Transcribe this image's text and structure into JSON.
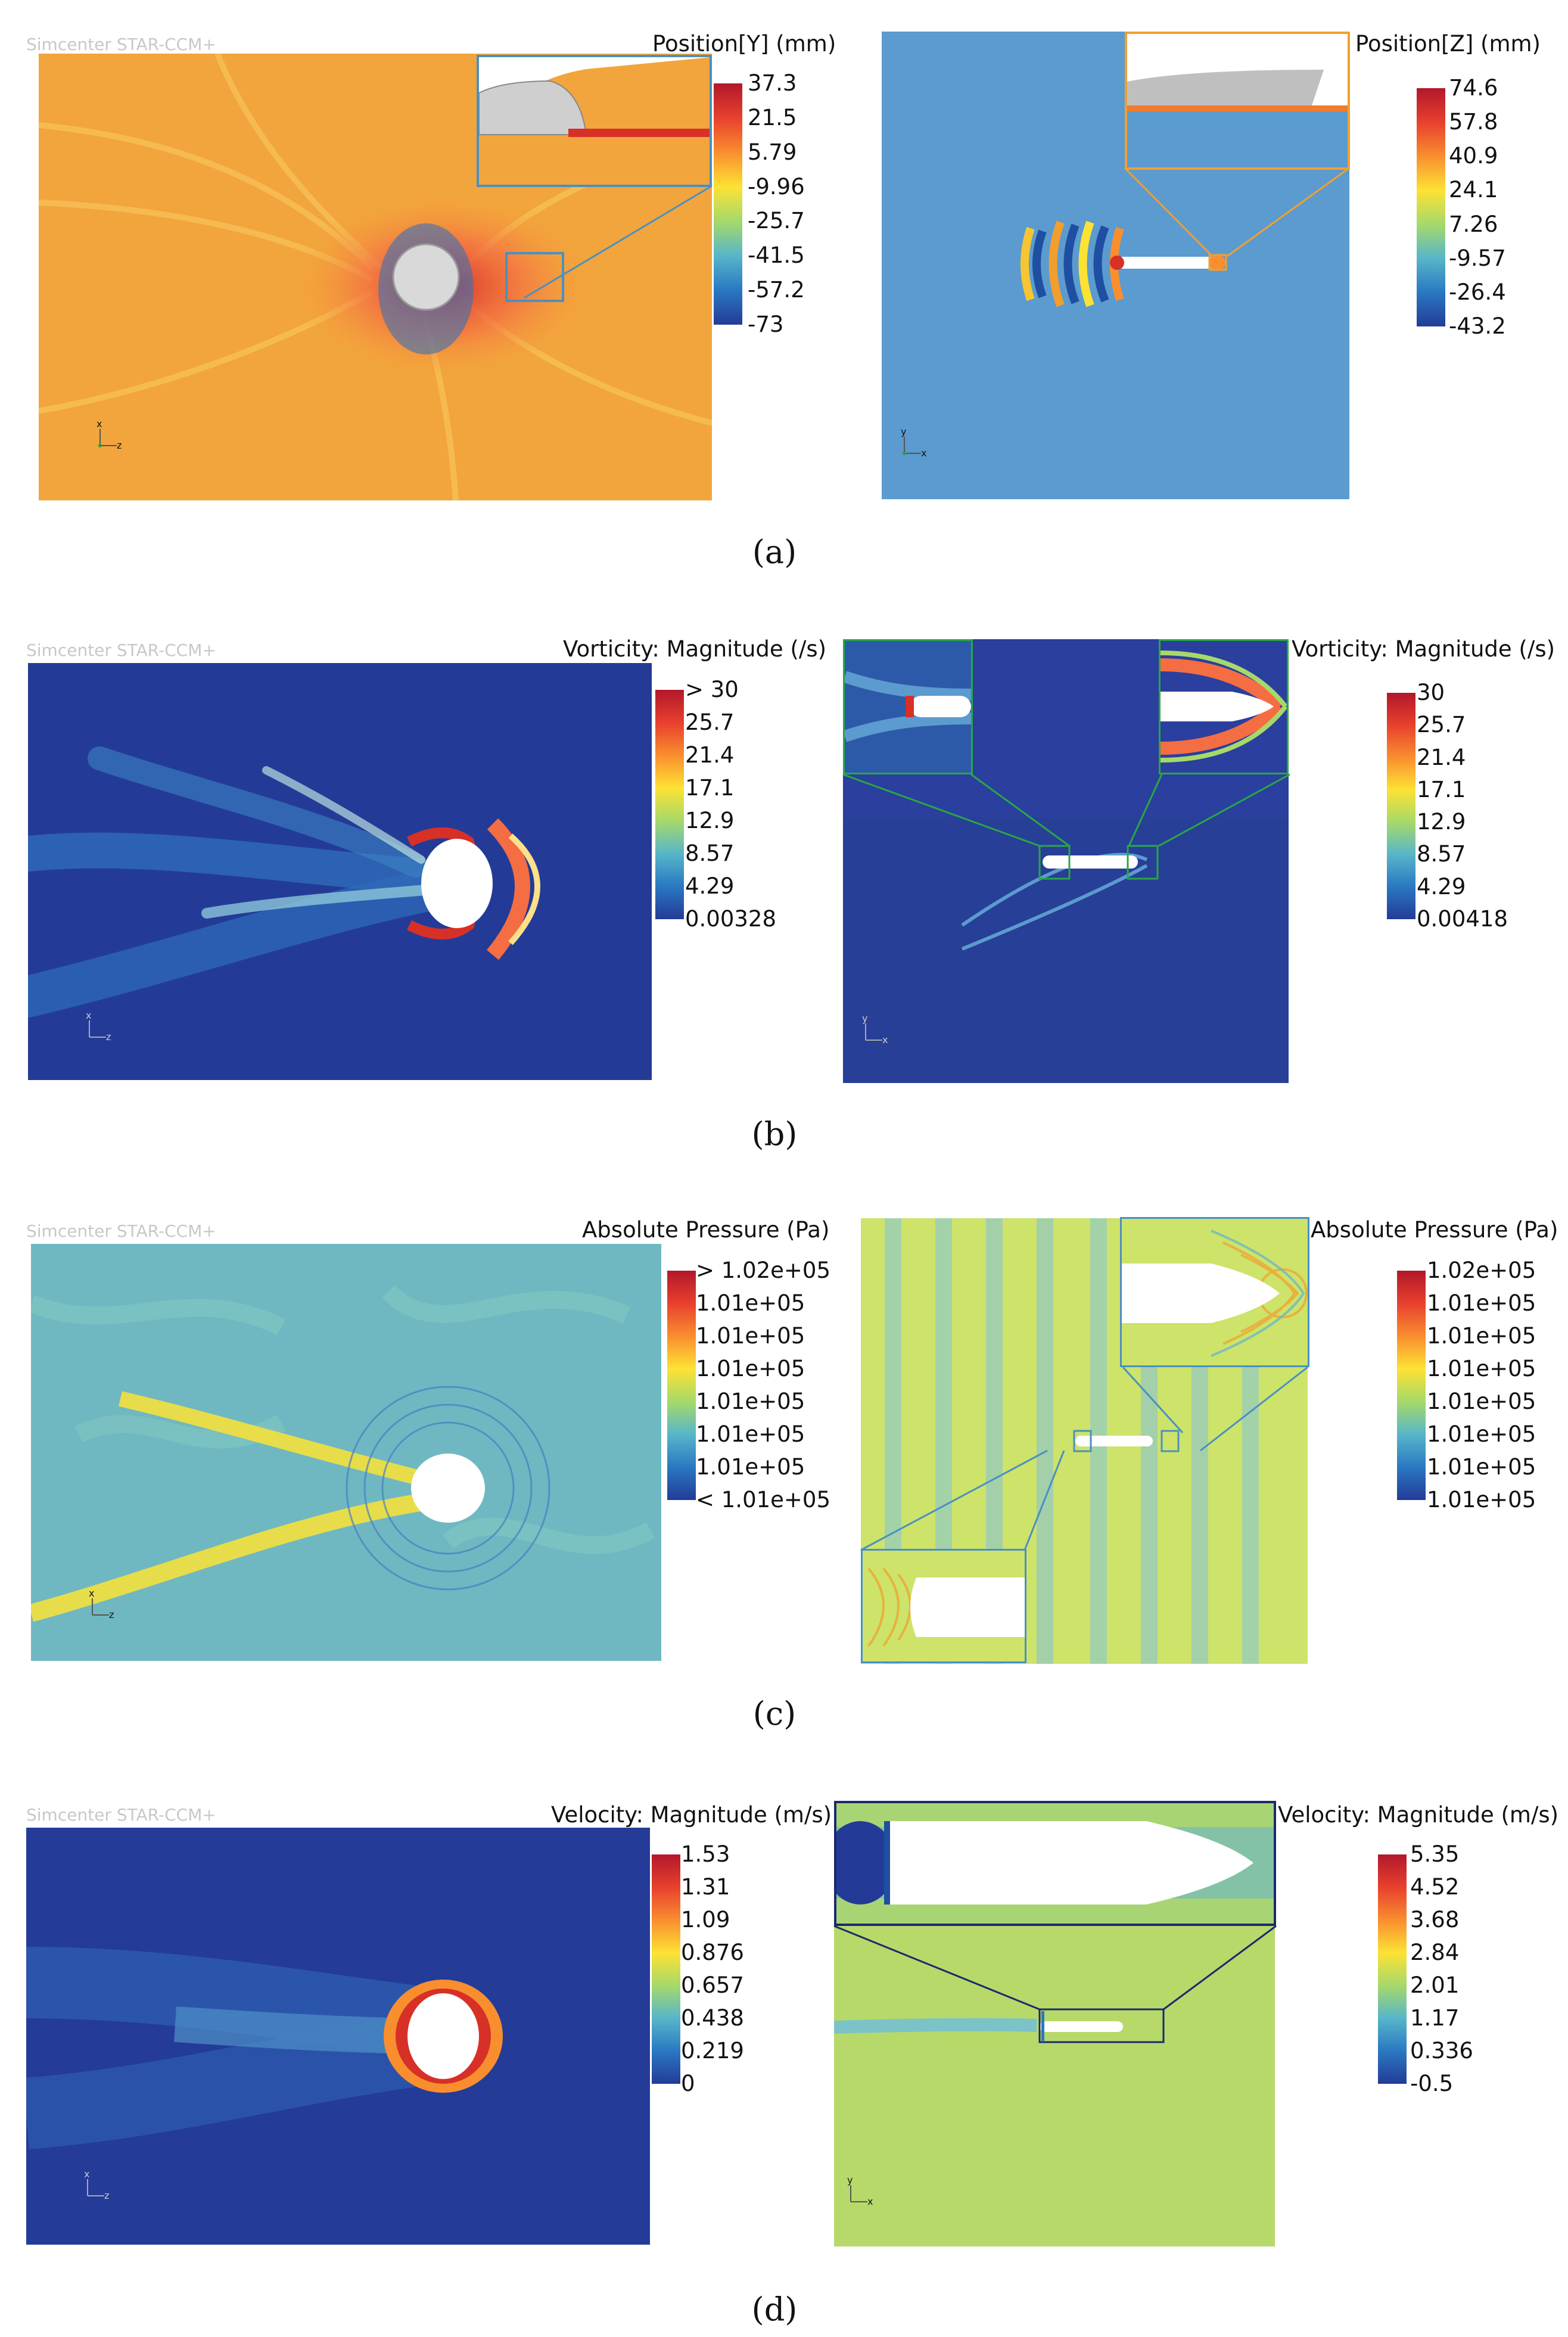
{
  "watermark": "Simcenter STAR-CCM+",
  "panels": [
    {
      "id": "a",
      "caption": "(a)",
      "left": {
        "legend_title": "Position[Y] (mm)",
        "ticks": [
          "37.3",
          "21.5",
          "5.79",
          "-9.96",
          "-25.7",
          "-41.5",
          "-57.2",
          "-73"
        ],
        "axes": {
          "a": "x",
          "b": "z"
        }
      },
      "right": {
        "legend_title": "Position[Z] (mm)",
        "ticks": [
          "74.6",
          "57.8",
          "40.9",
          "24.1",
          "7.26",
          "-9.57",
          "-26.4",
          "-43.2"
        ],
        "axes": {
          "a": "y",
          "b": "x"
        }
      }
    },
    {
      "id": "b",
      "caption": "(b)",
      "left": {
        "legend_title": "Vorticity: Magnitude (/s)",
        "ticks": [
          "> 30",
          "25.7",
          "21.4",
          "17.1",
          "12.9",
          "8.57",
          "4.29",
          "0.00328"
        ],
        "axes": {
          "a": "x",
          "b": "z"
        }
      },
      "right": {
        "legend_title": "Vorticity: Magnitude (/s)",
        "ticks": [
          "30",
          "25.7",
          "21.4",
          "17.1",
          "12.9",
          "8.57",
          "4.29",
          "0.00418"
        ],
        "axes": {
          "a": "y",
          "b": "x"
        }
      }
    },
    {
      "id": "c",
      "caption": "(c)",
      "left": {
        "legend_title": "Absolute Pressure (Pa)",
        "ticks": [
          "> 1.02e+05",
          "1.01e+05",
          "1.01e+05",
          "1.01e+05",
          "1.01e+05",
          "1.01e+05",
          "1.01e+05",
          "< 1.01e+05"
        ],
        "axes": {
          "a": "x",
          "b": "z"
        }
      },
      "right": {
        "legend_title": "Absolute Pressure (Pa)",
        "ticks": [
          "1.02e+05",
          "1.01e+05",
          "1.01e+05",
          "1.01e+05",
          "1.01e+05",
          "1.01e+05",
          "1.01e+05",
          "1.01e+05"
        ],
        "axes": {
          "a": "y",
          "b": "x"
        }
      }
    },
    {
      "id": "d",
      "caption": "(d)",
      "left": {
        "legend_title": "Velocity: Magnitude (m/s)",
        "ticks": [
          "1.53",
          "1.31",
          "1.09",
          "0.876",
          "0.657",
          "0.438",
          "0.219",
          "0"
        ],
        "axes": {
          "a": "x",
          "b": "z"
        }
      },
      "right": {
        "legend_title": "Velocity: Magnitude (m/s)",
        "ticks": [
          "5.35",
          "4.52",
          "3.68",
          "2.84",
          "2.01",
          "1.17",
          "0.336",
          "-0.5"
        ],
        "axes": {
          "a": "y",
          "b": "x"
        }
      }
    }
  ],
  "colors": {
    "colormap": [
      "#b2182b",
      "#e8402e",
      "#f98e2f",
      "#fde234",
      "#a6d96a",
      "#57b6c9",
      "#2a78c2",
      "#233b97"
    ],
    "inset_border_a_left": "#4a90c2",
    "inset_border_a_right": "#f0a030",
    "inset_border_b": "#28a745",
    "inset_border_c": "#4a90c2",
    "inset_border_d": "#1a2a6c"
  }
}
